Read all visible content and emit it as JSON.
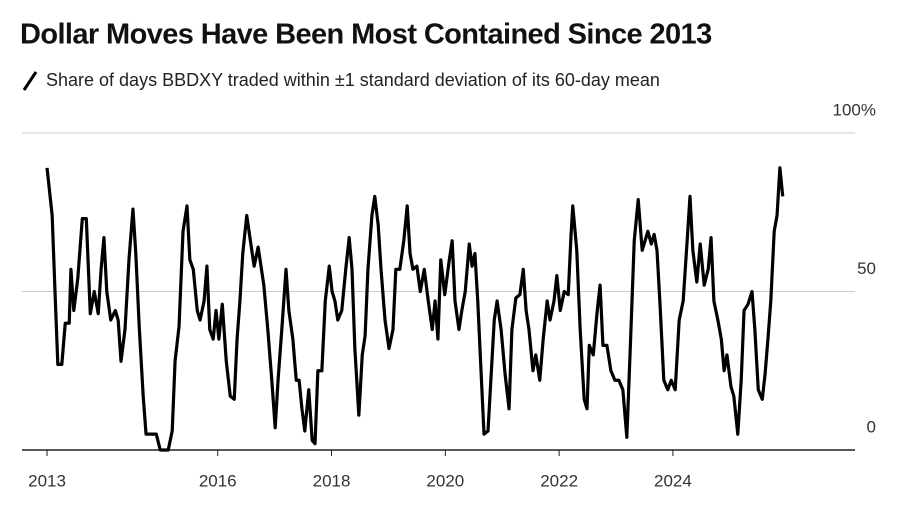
{
  "chart_data": {
    "type": "line",
    "title": "Dollar Moves Have Been Most Contained Since 2013",
    "xlim": [
      2012.56,
      2027.2
    ],
    "xticks": [
      2013,
      2016,
      2018,
      2020,
      2022,
      2024
    ],
    "ylim": [
      0,
      100
    ],
    "yticks": [
      0,
      50,
      {
        "value": 100,
        "label": "100%"
      }
    ],
    "grid": true,
    "x": [
      2013.0,
      2013.09,
      2013.14,
      2013.19,
      2013.26,
      2013.32,
      2013.39,
      2013.42,
      2013.47,
      2013.54,
      2013.62,
      2013.69,
      2013.76,
      2013.83,
      2013.9,
      2013.95,
      2014.0,
      2014.05,
      2014.12,
      2014.2,
      2014.25,
      2014.3,
      2014.37,
      2014.44,
      2014.51,
      2014.56,
      2014.62,
      2014.69,
      2014.74,
      2014.79,
      2014.85,
      2014.92,
      2014.99,
      2015.13,
      2015.2,
      2015.25,
      2015.32,
      2015.39,
      2015.46,
      2015.51,
      2015.57,
      2015.64,
      2015.69,
      2015.76,
      2015.81,
      2015.86,
      2015.92,
      2015.97,
      2016.02,
      2016.08,
      2016.15,
      2016.22,
      2016.29,
      2016.34,
      2016.39,
      2016.44,
      2016.51,
      2016.59,
      2016.64,
      2016.71,
      2016.76,
      2016.81,
      2016.88,
      2016.95,
      2017.01,
      2017.06,
      2017.13,
      2017.2,
      2017.25,
      2017.32,
      2017.38,
      2017.43,
      2017.48,
      2017.53,
      2017.6,
      2017.66,
      2017.71,
      2017.76,
      2017.83,
      2017.89,
      2017.96,
      2018.01,
      2018.06,
      2018.11,
      2018.18,
      2018.25,
      2018.31,
      2018.36,
      2018.41,
      2018.48,
      2018.54,
      2018.59,
      2018.64,
      2018.71,
      2018.76,
      2018.82,
      2018.87,
      2018.94,
      2019.01,
      2019.08,
      2019.13,
      2019.2,
      2019.27,
      2019.33,
      2019.38,
      2019.43,
      2019.5,
      2019.56,
      2019.63,
      2019.7,
      2019.77,
      2019.82,
      2019.87,
      2019.92,
      2019.99,
      2020.07,
      2020.12,
      2020.17,
      2020.24,
      2020.29,
      2020.35,
      2020.42,
      2020.47,
      2020.52,
      2020.57,
      2020.63,
      2020.68,
      2020.75,
      2020.8,
      2020.86,
      2020.91,
      2020.98,
      2021.05,
      2021.12,
      2021.17,
      2021.24,
      2021.31,
      2021.37,
      2021.42,
      2021.47,
      2021.54,
      2021.59,
      2021.66,
      2021.72,
      2021.79,
      2021.84,
      2021.91,
      2021.96,
      2022.02,
      2022.09,
      2022.16,
      2022.21,
      2022.24,
      2022.31,
      2022.37,
      2022.44,
      2022.49,
      2022.53,
      2022.6,
      2022.67,
      2022.72,
      2022.77,
      2022.84,
      2022.91,
      2022.98,
      2023.05,
      2023.12,
      2023.19,
      2023.25,
      2023.32,
      2023.39,
      2023.46,
      2023.51,
      2023.56,
      2023.62,
      2023.67,
      2023.72,
      2023.77,
      2023.84,
      2023.91,
      2023.97,
      2024.04,
      2024.11,
      2024.18,
      2024.25,
      2024.3,
      2024.35,
      2024.42,
      2024.48,
      2024.55,
      2024.62,
      2024.67,
      2024.72,
      2024.79,
      2024.85,
      2024.9,
      2024.95,
      2025.02,
      2025.07,
      2025.14,
      2025.2,
      2025.25,
      2025.32,
      2025.39,
      2025.44,
      2025.5,
      2025.57,
      2025.62,
      2025.67,
      2025.72,
      2025.78,
      2025.83,
      2025.88,
      2025.93
    ],
    "series": [
      {
        "name": "Share of days BBDXY traded within ±1 standard deviation of its 60-day mean",
        "color": "#000000",
        "values": [
          89,
          74,
          50,
          27,
          27,
          40,
          40,
          57,
          44,
          54,
          73,
          73,
          43,
          50,
          43,
          57,
          67,
          50,
          41,
          44,
          41,
          28,
          38,
          60,
          76,
          62,
          39,
          17,
          5,
          5,
          5,
          5,
          0,
          0,
          6,
          28,
          39,
          69,
          77,
          60,
          57,
          44,
          41,
          47,
          58,
          38,
          35,
          44,
          35,
          46,
          28,
          17,
          16,
          35,
          47,
          62,
          74,
          64,
          58,
          64,
          58,
          52,
          38,
          22,
          7,
          22,
          39,
          57,
          44,
          35,
          22,
          22,
          13,
          6,
          19,
          3,
          2,
          25,
          25,
          47,
          58,
          50,
          47,
          41,
          44,
          57,
          67,
          57,
          32,
          11,
          30,
          36,
          57,
          74,
          80,
          71,
          57,
          41,
          32,
          38,
          57,
          57,
          66,
          77,
          62,
          57,
          58,
          50,
          57,
          47,
          38,
          47,
          35,
          60,
          49,
          60,
          66,
          47,
          38,
          44,
          50,
          65,
          58,
          62,
          47,
          24,
          5,
          6,
          22,
          41,
          47,
          38,
          24,
          13,
          38,
          48,
          49,
          57,
          44,
          38,
          25,
          30,
          22,
          35,
          47,
          41,
          47,
          55,
          44,
          50,
          49,
          68,
          77,
          63,
          38,
          16,
          13,
          33,
          30,
          44,
          52,
          33,
          33,
          25,
          22,
          22,
          19,
          4,
          32,
          66,
          79,
          63,
          66,
          69,
          65,
          68,
          63,
          47,
          22,
          19,
          22,
          19,
          41,
          47,
          66,
          80,
          63,
          53,
          65,
          52,
          57,
          67,
          47,
          41,
          35,
          25,
          30,
          20,
          17,
          5,
          22,
          44,
          46,
          50,
          38,
          19,
          16,
          24,
          35,
          47,
          69,
          74,
          89,
          80
        ]
      }
    ]
  }
}
